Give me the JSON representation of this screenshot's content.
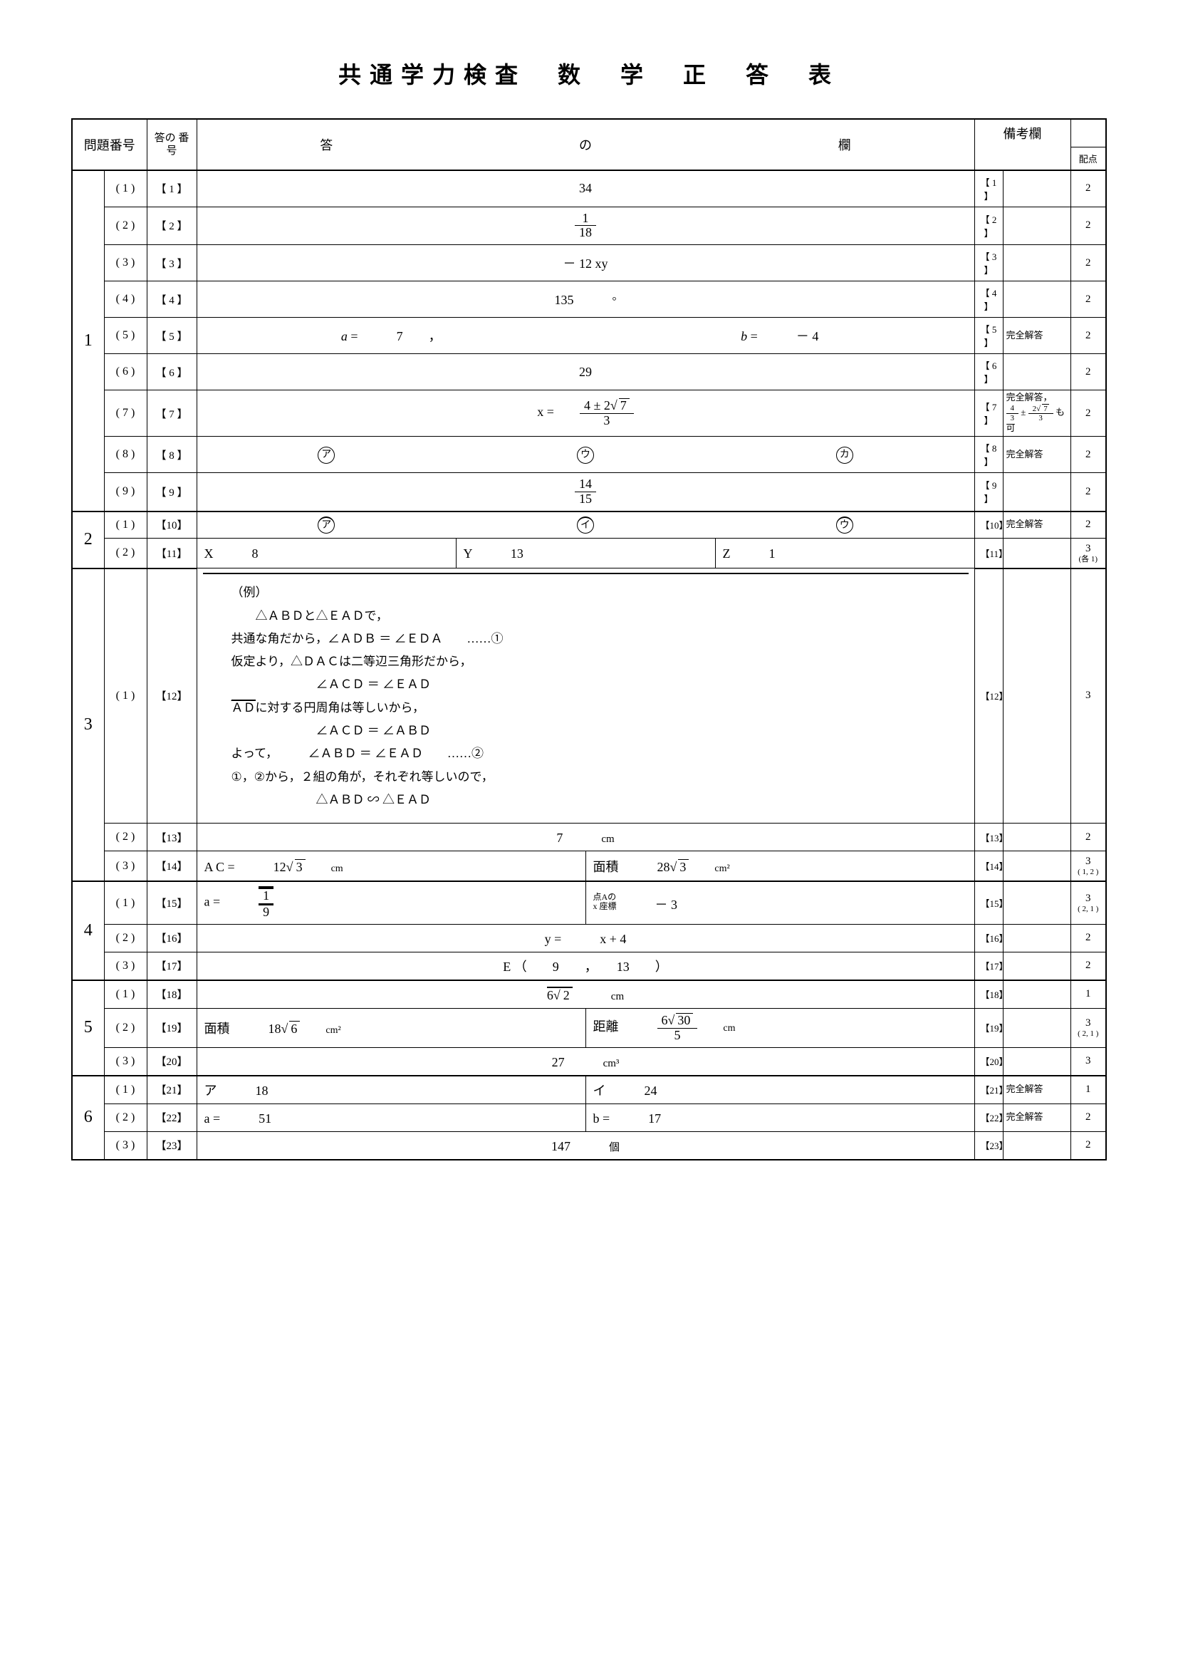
{
  "title": {
    "full": "共通学力検査　数　学　正　答　表"
  },
  "headers": {
    "problem_no": "問題番号",
    "answer_no": "答の\n番号",
    "answer_col_a": "答",
    "answer_col_b": "の",
    "answer_col_c": "欄",
    "notes": "備考欄",
    "points": "配点"
  },
  "rows": [
    {
      "q": "1",
      "sub": "( 1 )",
      "num": "【 1 】",
      "answer": {
        "type": "plain",
        "text": "34"
      },
      "nref": "【 1 】",
      "note": "",
      "pts": "2"
    },
    {
      "q": "1",
      "sub": "( 2 )",
      "num": "【 2 】",
      "answer": {
        "type": "frac",
        "num": "1",
        "den": "18"
      },
      "nref": "【 2 】",
      "note": "",
      "pts": "2"
    },
    {
      "q": "1",
      "sub": "( 3 )",
      "num": "【 3 】",
      "answer": {
        "type": "plain",
        "text": "－ 12 xy"
      },
      "nref": "【 3 】",
      "note": "",
      "pts": "2"
    },
    {
      "q": "1",
      "sub": "( 4 )",
      "num": "【 4 】",
      "answer": {
        "type": "unit",
        "text": "135",
        "unit": "°"
      },
      "nref": "【 4 】",
      "note": "",
      "pts": "2"
    },
    {
      "q": "1",
      "sub": "( 5 )",
      "num": "【 5 】",
      "answer": {
        "type": "ab",
        "a": "7",
        "b": "－ 4"
      },
      "nref": "【 5 】",
      "note": "完全解答",
      "pts": "2"
    },
    {
      "q": "1",
      "sub": "( 6 )",
      "num": "【 6 】",
      "answer": {
        "type": "plain",
        "text": "29"
      },
      "nref": "【 6 】",
      "note": "",
      "pts": "2"
    },
    {
      "q": "1",
      "sub": "( 7 )",
      "num": "【 7 】",
      "answer": {
        "type": "eqfrac",
        "pre": "x =",
        "num": "4 ± 2√7",
        "den": "3"
      },
      "nref": "【 7 】",
      "note": "完全解答，\n4/3 ± 2√7/3 も可",
      "pts": "2"
    },
    {
      "q": "1",
      "sub": "( 8 )",
      "num": "【 8 】",
      "answer": {
        "type": "choices3",
        "c1": "ア",
        "c2": "ウ",
        "c3": "カ"
      },
      "nref": "【 8 】",
      "note": "完全解答",
      "pts": "2"
    },
    {
      "q": "1",
      "sub": "( 9 )",
      "num": "【 9 】",
      "answer": {
        "type": "frac",
        "num": "14",
        "den": "15"
      },
      "nref": "【 9 】",
      "note": "",
      "pts": "2"
    },
    {
      "q": "2",
      "sub": "( 1 )",
      "num": "【10】",
      "answer": {
        "type": "choices3",
        "c1": "ア",
        "c2": "イ",
        "c3": "ウ"
      },
      "nref": "【10】",
      "note": "完全解答",
      "pts": "2"
    },
    {
      "q": "2",
      "sub": "( 2 )",
      "num": "【11】",
      "answer": {
        "type": "xyz",
        "x": "8",
        "y": "13",
        "z": "1"
      },
      "nref": "【11】",
      "note": "",
      "pts": "3",
      "pts_sub": "(各 1)"
    },
    {
      "q": "3",
      "sub": "( 1 )",
      "num": "【12】",
      "answer": {
        "type": "proof"
      },
      "nref": "【12】",
      "note": "",
      "pts": "3"
    },
    {
      "q": "3",
      "sub": "( 2 )",
      "num": "【13】",
      "answer": {
        "type": "unit",
        "text": "7",
        "unit": "cm"
      },
      "nref": "【13】",
      "note": "",
      "pts": "2"
    },
    {
      "q": "3",
      "sub": "( 3 )",
      "num": "【14】",
      "answer": {
        "type": "two",
        "l1": "A C =",
        "v1": "12√3",
        "u1": "cm",
        "l2": "面積",
        "v2": "28√3",
        "u2": "cm²"
      },
      "nref": "【14】",
      "note": "",
      "pts": "3",
      "pts_sub": "( 1, 2 )"
    },
    {
      "q": "4",
      "sub": "( 1 )",
      "num": "【15】",
      "answer": {
        "type": "two",
        "l1": "a =",
        "v1": "1/9",
        "u1": "",
        "l2": "点Aの\nx 座標",
        "v2": "－ 3",
        "u2": ""
      },
      "nref": "【15】",
      "note": "",
      "pts": "3",
      "pts_sub": "( 2, 1 )"
    },
    {
      "q": "4",
      "sub": "( 2 )",
      "num": "【16】",
      "answer": {
        "type": "plain",
        "text": "y =　　　x + 4"
      },
      "nref": "【16】",
      "note": "",
      "pts": "2"
    },
    {
      "q": "4",
      "sub": "( 3 )",
      "num": "【17】",
      "answer": {
        "type": "plain",
        "text": "E （　　9　　，　　13　　）"
      },
      "nref": "【17】",
      "note": "",
      "pts": "2"
    },
    {
      "q": "5",
      "sub": "( 1 )",
      "num": "【18】",
      "answer": {
        "type": "sqrtunit",
        "coef": "6",
        "rad": "2",
        "unit": "cm"
      },
      "nref": "【18】",
      "note": "",
      "pts": "1"
    },
    {
      "q": "5",
      "sub": "( 2 )",
      "num": "【19】",
      "answer": {
        "type": "two",
        "l1": "面積",
        "v1": "18√6",
        "u1": "cm²",
        "l2": "距離",
        "v2": "6√30/5",
        "u2": "cm"
      },
      "nref": "【19】",
      "note": "",
      "pts": "3",
      "pts_sub": "( 2, 1 )"
    },
    {
      "q": "5",
      "sub": "( 3 )",
      "num": "【20】",
      "answer": {
        "type": "unit",
        "text": "27",
        "unit": "cm³"
      },
      "nref": "【20】",
      "note": "",
      "pts": "3"
    },
    {
      "q": "6",
      "sub": "( 1 )",
      "num": "【21】",
      "answer": {
        "type": "two",
        "l1": "ア",
        "v1": "18",
        "u1": "",
        "l2": "イ",
        "v2": "24",
        "u2": ""
      },
      "nref": "【21】",
      "note": "完全解答",
      "pts": "1"
    },
    {
      "q": "6",
      "sub": "( 2 )",
      "num": "【22】",
      "answer": {
        "type": "two",
        "l1": "a =",
        "v1": "51",
        "u1": "",
        "l2": "b =",
        "v2": "17",
        "u2": ""
      },
      "nref": "【22】",
      "note": "完全解答",
      "pts": "2"
    },
    {
      "q": "6",
      "sub": "( 3 )",
      "num": "【23】",
      "answer": {
        "type": "unit",
        "text": "147",
        "unit": "個"
      },
      "nref": "【23】",
      "note": "",
      "pts": "2"
    }
  ],
  "proof": {
    "heading": "（例）",
    "lines": [
      "△ＡＢＤと△ＥＡＤで，",
      "共通な角だから，∠ＡＤＢ ＝ ∠ＥＤＡ　　……①",
      "仮定より，△ＤＡＣは二等辺三角形だから，",
      "　　　　　　　∠ＡＣＤ ＝ ∠ＥＡＤ",
      "ＡＤに対する円周角は等しいから，",
      "　　　　　　　∠ＡＣＤ ＝ ∠ＡＢＤ",
      "よって，　　　∠ＡＢＤ ＝ ∠ＥＡＤ　　……②",
      "①，②から，２組の角が，それぞれ等しいので，",
      "　　　　　　　△ＡＢＤ ∽ △ＥＡＤ"
    ]
  },
  "question_rowspans": {
    "1": 9,
    "2": 2,
    "3": 3,
    "4": 3,
    "5": 3,
    "6": 3
  },
  "colors": {
    "border": "#000000",
    "background": "#ffffff",
    "text": "#000000",
    "dotted": "#999999"
  }
}
